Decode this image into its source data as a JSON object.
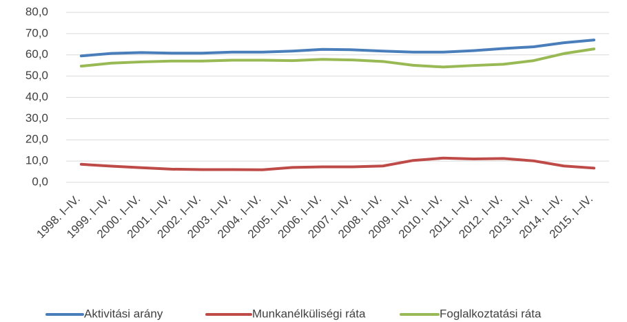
{
  "chart_data": {
    "type": "line",
    "categories": [
      "1998. I–IV.",
      "1999. I–IV.",
      "2000. I–IV.",
      "2001. I–IV.",
      "2002. I–IV.",
      "2003. I–IV.",
      "2004. I–IV.",
      "2005. I–IV.",
      "2006. I–IV.",
      "2007. I–IV.",
      "2008. I–IV.",
      "2009. I–IV.",
      "2010. I–IV.",
      "2011. I–IV.",
      "2012. I–IV.",
      "2013. I–IV.",
      "2014. I–IV.",
      "2015. I–IV."
    ],
    "series": [
      {
        "name": "Aktivitási arány",
        "color": "#4a7ebb",
        "values": [
          59.5,
          60.7,
          61.1,
          60.8,
          60.8,
          61.3,
          61.3,
          61.8,
          62.6,
          62.4,
          61.8,
          61.3,
          61.3,
          62.0,
          63.0,
          63.8,
          65.7,
          67.0
        ]
      },
      {
        "name": "Munkanélküliségi ráta",
        "color": "#be4b48",
        "values": [
          8.5,
          7.6,
          6.9,
          6.2,
          6.0,
          6.0,
          5.9,
          7.0,
          7.3,
          7.3,
          7.7,
          10.3,
          11.4,
          11.0,
          11.2,
          10.1,
          7.7,
          6.7
        ]
      },
      {
        "name": "Foglalkoztatási ráta",
        "color": "#98b954",
        "values": [
          54.7,
          56.1,
          56.7,
          57.1,
          57.1,
          57.5,
          57.5,
          57.3,
          57.9,
          57.6,
          56.9,
          55.1,
          54.3,
          55.0,
          55.6,
          57.3,
          60.6,
          62.8
        ]
      }
    ],
    "ylim": [
      0,
      80
    ],
    "yticks": [
      {
        "value": 0,
        "label": "0,0"
      },
      {
        "value": 10,
        "label": "10,0"
      },
      {
        "value": 20,
        "label": "20,0"
      },
      {
        "value": 30,
        "label": "30,0"
      },
      {
        "value": 40,
        "label": "40,0"
      },
      {
        "value": 50,
        "label": "50,0"
      },
      {
        "value": 60,
        "label": "60,0"
      },
      {
        "value": 70,
        "label": "70,0"
      },
      {
        "value": 80,
        "label": "80,0"
      }
    ],
    "grid": true,
    "legend": "bottom"
  }
}
